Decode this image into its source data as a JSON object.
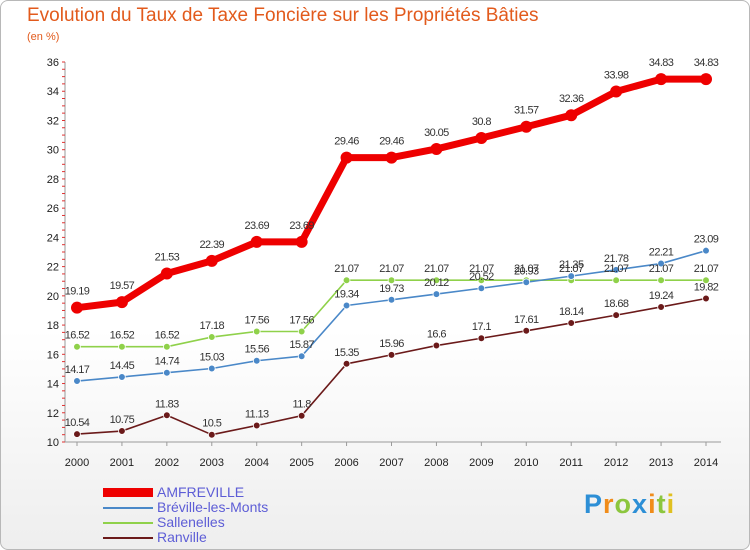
{
  "header": {
    "title": "Evolution du Taux de Taxe Foncière sur les Propriétés Bâties",
    "unit": "(en %)"
  },
  "logo": {
    "letters": [
      "P",
      "r",
      "o",
      "x",
      "i",
      "t",
      "i"
    ],
    "colors": [
      "#2d8fd6",
      "#f08c1a",
      "#8cc63e",
      "#2d8fd6",
      "#f08c1a",
      "#8cc63e",
      "#e0c020"
    ]
  },
  "chart_data": {
    "type": "line",
    "x": [
      "2000",
      "2001",
      "2002",
      "2003",
      "2004",
      "2005",
      "2006",
      "2007",
      "2008",
      "2009",
      "2010",
      "2011",
      "2012",
      "2013",
      "2014"
    ],
    "ylim": [
      10,
      36
    ],
    "yticks": [
      "10",
      "12",
      "14",
      "16",
      "18",
      "20",
      "22",
      "24",
      "26",
      "28",
      "30",
      "32",
      "34",
      "36"
    ],
    "grid": false,
    "legend_position": "bottom-left",
    "series": [
      {
        "name": "AMFREVILLE",
        "color": "#ee0000",
        "values": [
          19.19,
          19.57,
          21.53,
          22.39,
          23.69,
          23.69,
          29.46,
          29.46,
          30.05,
          30.8,
          31.57,
          32.36,
          33.98,
          34.83,
          34.83
        ],
        "labels": [
          "19.19",
          "19.57",
          "21.53",
          "22.39",
          "23.69",
          "23.69",
          "29.46",
          "29.46",
          "30.05",
          "30.8",
          "31.57",
          "32.36",
          "33.98",
          "34.83",
          "34.83"
        ]
      },
      {
        "name": "Bréville-les-Monts",
        "color": "#4a88c8",
        "values": [
          14.17,
          14.45,
          14.74,
          15.03,
          15.56,
          15.87,
          19.34,
          19.73,
          20.12,
          20.52,
          20.93,
          21.35,
          21.78,
          22.21,
          23.09
        ],
        "labels": [
          "14.17",
          "14.45",
          "14.74",
          "15.03",
          "15.56",
          "15.87",
          "19.34",
          "19.73",
          "20.12",
          "20.52",
          "20.93",
          "21.35",
          "21.78",
          "22.21",
          "23.09"
        ]
      },
      {
        "name": "Sallenelles",
        "color": "#8fd14a",
        "values": [
          16.52,
          16.52,
          16.52,
          17.18,
          17.56,
          17.56,
          21.07,
          21.07,
          21.07,
          21.07,
          21.07,
          21.07,
          21.07,
          21.07,
          21.07
        ],
        "labels": [
          "16.52",
          "16.52",
          "16.52",
          "17.18",
          "17.56",
          "17.56",
          "21.07",
          "21.07",
          "21.07",
          "21.07",
          "21.07",
          "21.07",
          "21.07",
          "21.07",
          "21.07"
        ]
      },
      {
        "name": "Ranville",
        "color": "#6b1a1a",
        "values": [
          10.54,
          10.75,
          11.83,
          10.5,
          11.13,
          11.8,
          15.35,
          15.96,
          16.6,
          17.1,
          17.61,
          18.14,
          18.68,
          19.24,
          19.82
        ],
        "labels": [
          "10.54",
          "10.75",
          "11.83",
          "10.5",
          "11.13",
          "11.8",
          "15.35",
          "15.96",
          "16.6",
          "17.1",
          "17.61",
          "18.14",
          "18.68",
          "19.24",
          "19.82"
        ]
      }
    ]
  }
}
